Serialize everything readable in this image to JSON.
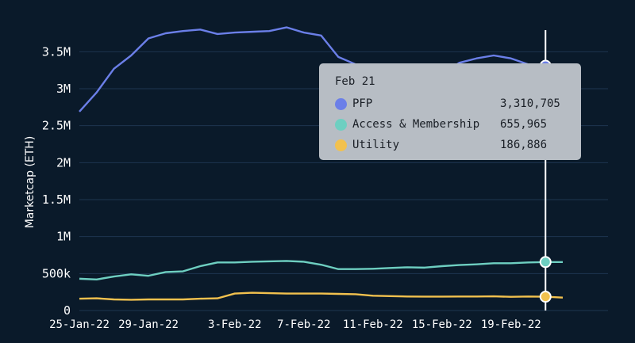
{
  "chart_data": {
    "type": "line",
    "ylabel": "Marketcap (ETH)",
    "ylim": [
      0,
      3900000
    ],
    "y_ticks": [
      {
        "value": 0,
        "label": "0"
      },
      {
        "value": 500000,
        "label": "500k"
      },
      {
        "value": 1000000,
        "label": "1M"
      },
      {
        "value": 1500000,
        "label": "1.5M"
      },
      {
        "value": 2000000,
        "label": "2M"
      },
      {
        "value": 2500000,
        "label": "2.5M"
      },
      {
        "value": 3000000,
        "label": "3M"
      },
      {
        "value": 3500000,
        "label": "3.5M"
      }
    ],
    "x_tick_labels": [
      "25-Jan-22",
      "29-Jan-22",
      "3-Feb-22",
      "7-Feb-22",
      "11-Feb-22",
      "15-Feb-22",
      "19-Feb-22"
    ],
    "x_tick_index": [
      0,
      4,
      9,
      13,
      17,
      21,
      25
    ],
    "x": [
      "25-Jan-22",
      "26-Jan-22",
      "27-Jan-22",
      "28-Jan-22",
      "29-Jan-22",
      "30-Jan-22",
      "31-Jan-22",
      "1-Feb-22",
      "2-Feb-22",
      "3-Feb-22",
      "4-Feb-22",
      "5-Feb-22",
      "6-Feb-22",
      "7-Feb-22",
      "8-Feb-22",
      "9-Feb-22",
      "10-Feb-22",
      "11-Feb-22",
      "12-Feb-22",
      "13-Feb-22",
      "14-Feb-22",
      "15-Feb-22",
      "16-Feb-22",
      "17-Feb-22",
      "18-Feb-22",
      "19-Feb-22",
      "20-Feb-22",
      "21-Feb-22",
      "22-Feb-22"
    ],
    "series": [
      {
        "name": "PFP",
        "color": "#6b7fe8",
        "values": [
          2690000,
          2950000,
          3270000,
          3450000,
          3680000,
          3750000,
          3780000,
          3800000,
          3740000,
          3760000,
          3770000,
          3780000,
          3830000,
          3760000,
          3720000,
          3430000,
          3330000,
          3240000,
          3180000,
          3180000,
          3200000,
          3200000,
          3350000,
          3410000,
          3450000,
          3410000,
          3330000,
          3310705,
          3310000
        ]
      },
      {
        "name": "Access & Membership",
        "color": "#6ecfc1",
        "values": [
          430000,
          420000,
          460000,
          490000,
          470000,
          520000,
          530000,
          600000,
          650000,
          650000,
          660000,
          665000,
          670000,
          660000,
          620000,
          560000,
          560000,
          565000,
          575000,
          585000,
          580000,
          600000,
          615000,
          625000,
          640000,
          640000,
          650000,
          655965,
          656000
        ]
      },
      {
        "name": "Utility",
        "color": "#f2c14e",
        "values": [
          160000,
          165000,
          150000,
          145000,
          150000,
          150000,
          150000,
          160000,
          165000,
          230000,
          240000,
          235000,
          230000,
          230000,
          230000,
          225000,
          220000,
          200000,
          195000,
          190000,
          188000,
          188000,
          190000,
          190000,
          192000,
          185000,
          190000,
          186886,
          175000
        ]
      }
    ],
    "hover_index": 27,
    "tooltip": {
      "date": "Feb 21",
      "rows": [
        {
          "name": "PFP",
          "value": "3,310,705",
          "color": "#6b7fe8"
        },
        {
          "name": "Access & Membership",
          "value": "655,965",
          "color": "#6ecfc1"
        },
        {
          "name": "Utility",
          "value": "186,886",
          "color": "#f2c14e"
        }
      ]
    },
    "grid": true,
    "grid_color": "#1e3550",
    "background": "#0a1a2a"
  }
}
